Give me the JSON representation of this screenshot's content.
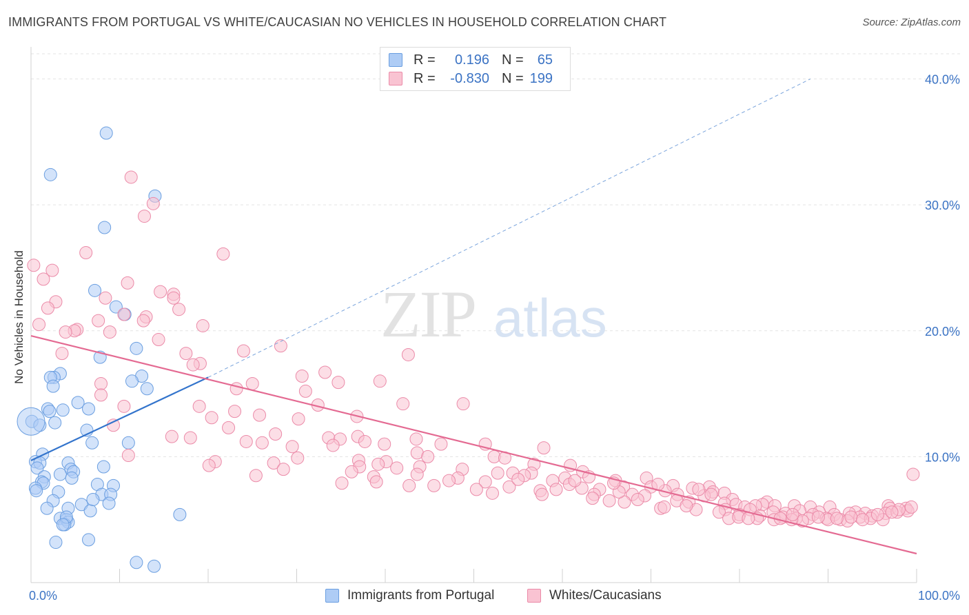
{
  "title": "IMMIGRANTS FROM PORTUGAL VS WHITE/CAUCASIAN NO VEHICLES IN HOUSEHOLD CORRELATION CHART",
  "source": "Source: ZipAtlas.com",
  "watermark": {
    "zip": "ZIP",
    "atlas": "atlas"
  },
  "legend": {
    "r_label": "R =",
    "n_label": "N =",
    "rows": [
      {
        "r": "0.196",
        "n": "65",
        "fill": "#aeccf5",
        "stroke": "#6a9ee0"
      },
      {
        "r": "-0.830",
        "n": "199",
        "fill": "#f9c3d2",
        "stroke": "#eb8aa8"
      }
    ]
  },
  "bottom_legend": [
    {
      "label": "Immigrants from Portugal",
      "fill": "#aeccf5",
      "stroke": "#6a9ee0"
    },
    {
      "label": "Whites/Caucasians",
      "fill": "#f9c3d2",
      "stroke": "#eb8aa8"
    }
  ],
  "chart_data": {
    "type": "scatter",
    "title": "IMMIGRANTS FROM PORTUGAL VS WHITE/CAUCASIAN NO VEHICLES IN HOUSEHOLD CORRELATION CHART",
    "xlabel": "",
    "ylabel": "No Vehicles in Household",
    "xlim": [
      0,
      100
    ],
    "ylim": [
      0,
      42
    ],
    "x_tick_labels": [
      "0.0%",
      "100.0%"
    ],
    "y_ticks": [
      10,
      20,
      30,
      40
    ],
    "y_tick_labels": [
      "10.0%",
      "20.0%",
      "30.0%",
      "40.0%"
    ],
    "grid": true,
    "legend_position": "top-center",
    "series": [
      {
        "name": "Immigrants from Portugal",
        "color": "#6a9ee0",
        "fill": "#aeccf5",
        "r": 0.196,
        "n": 65,
        "trend": {
          "x": [
            0,
            20
          ],
          "y": [
            9.7,
            16.3
          ],
          "dashed_extension_to": [
            88,
            40.0
          ]
        },
        "points": [
          [
            8.5,
            35.7
          ],
          [
            2.2,
            32.4
          ],
          [
            14,
            30.7
          ],
          [
            8.3,
            28.2
          ],
          [
            7.2,
            23.2
          ],
          [
            9.6,
            21.9
          ],
          [
            10.6,
            21.3
          ],
          [
            11.9,
            18.6
          ],
          [
            7.8,
            17.9
          ],
          [
            3.3,
            16.6
          ],
          [
            2.6,
            16.3
          ],
          [
            2.2,
            16.3
          ],
          [
            12.5,
            16.4
          ],
          [
            13.1,
            15.4
          ],
          [
            11.4,
            16.0
          ],
          [
            2.5,
            15.6
          ],
          [
            5.3,
            14.3
          ],
          [
            1.9,
            13.8
          ],
          [
            2.1,
            13.6
          ],
          [
            3.6,
            13.7
          ],
          [
            6.5,
            13.8
          ],
          [
            0.1,
            12.8
          ],
          [
            1.0,
            12.5
          ],
          [
            2.7,
            12.7
          ],
          [
            6.3,
            12.1
          ],
          [
            6.9,
            11.1
          ],
          [
            11,
            11.1
          ],
          [
            1.3,
            10.2
          ],
          [
            0.5,
            9.6
          ],
          [
            1.0,
            9.5
          ],
          [
            0.7,
            9.1
          ],
          [
            4.2,
            9.5
          ],
          [
            4.5,
            9.0
          ],
          [
            4.8,
            8.8
          ],
          [
            8.2,
            9.2
          ],
          [
            1.5,
            8.4
          ],
          [
            3.3,
            8.6
          ],
          [
            4.6,
            8.3
          ],
          [
            1.2,
            8.0
          ],
          [
            1.4,
            7.9
          ],
          [
            7.5,
            7.8
          ],
          [
            9.3,
            7.7
          ],
          [
            0.5,
            7.5
          ],
          [
            0.6,
            7.3
          ],
          [
            3.1,
            7.2
          ],
          [
            8.0,
            7.0
          ],
          [
            9.0,
            7.0
          ],
          [
            2.5,
            6.5
          ],
          [
            5.7,
            6.2
          ],
          [
            8.8,
            6.3
          ],
          [
            1.8,
            5.9
          ],
          [
            4.2,
            5.9
          ],
          [
            6.7,
            5.7
          ],
          [
            3.3,
            5.1
          ],
          [
            4.0,
            5.0
          ],
          [
            4.2,
            4.8
          ],
          [
            3.8,
            4.6
          ],
          [
            16.8,
            5.4
          ],
          [
            6.5,
            3.4
          ],
          [
            2.8,
            3.2
          ],
          [
            11.9,
            1.6
          ],
          [
            13.9,
            1.3
          ],
          [
            4.0,
            5.2
          ],
          [
            3.6,
            4.6
          ],
          [
            7.0,
            6.6
          ]
        ]
      },
      {
        "name": "Whites/Caucasians",
        "color": "#eb8aa8",
        "fill": "#f9c3d2",
        "r": -0.83,
        "n": 199,
        "trend": {
          "x": [
            0,
            100
          ],
          "y": [
            19.6,
            2.3
          ]
        },
        "points": [
          [
            11.3,
            32.2
          ],
          [
            13.8,
            30.1
          ],
          [
            12.8,
            29.1
          ],
          [
            6.2,
            26.2
          ],
          [
            21.7,
            26.1
          ],
          [
            0.3,
            25.2
          ],
          [
            2.4,
            24.8
          ],
          [
            1.4,
            24.1
          ],
          [
            10.9,
            23.8
          ],
          [
            14.6,
            23.1
          ],
          [
            16.1,
            22.9
          ],
          [
            8.4,
            22.6
          ],
          [
            16.1,
            22.6
          ],
          [
            2.8,
            22.3
          ],
          [
            1.9,
            21.8
          ],
          [
            16.7,
            21.7
          ],
          [
            10.5,
            21.3
          ],
          [
            13.0,
            21.1
          ],
          [
            7.6,
            20.8
          ],
          [
            12.7,
            20.8
          ],
          [
            0.9,
            20.5
          ],
          [
            19.4,
            20.4
          ],
          [
            5.2,
            20.1
          ],
          [
            4.9,
            20.0
          ],
          [
            3.9,
            19.9
          ],
          [
            8.9,
            19.9
          ],
          [
            14.4,
            19.3
          ],
          [
            28.2,
            18.8
          ],
          [
            24.0,
            18.4
          ],
          [
            17.5,
            18.2
          ],
          [
            3.5,
            18.2
          ],
          [
            42.6,
            18.1
          ],
          [
            19.1,
            17.4
          ],
          [
            18.3,
            17.3
          ],
          [
            33.2,
            16.7
          ],
          [
            30.6,
            16.4
          ],
          [
            39.4,
            16.0
          ],
          [
            34.7,
            15.9
          ],
          [
            25.0,
            15.8
          ],
          [
            7.9,
            15.8
          ],
          [
            23.2,
            15.4
          ],
          [
            31.0,
            15.2
          ],
          [
            7.9,
            14.9
          ],
          [
            42.0,
            14.2
          ],
          [
            48.8,
            14.2
          ],
          [
            32.4,
            14.1
          ],
          [
            19.0,
            14.0
          ],
          [
            10.5,
            14.0
          ],
          [
            23.0,
            13.6
          ],
          [
            25.8,
            13.3
          ],
          [
            36.8,
            13.2
          ],
          [
            20.4,
            13.1
          ],
          [
            30.2,
            13.0
          ],
          [
            9.3,
            12.5
          ],
          [
            22.3,
            12.3
          ],
          [
            27.6,
            11.8
          ],
          [
            33.6,
            11.5
          ],
          [
            36.9,
            11.6
          ],
          [
            15.9,
            11.6
          ],
          [
            18.0,
            11.5
          ],
          [
            34.9,
            11.4
          ],
          [
            43.5,
            11.4
          ],
          [
            37.7,
            11.2
          ],
          [
            24.3,
            11.2
          ],
          [
            26.1,
            11.1
          ],
          [
            39.9,
            11.0
          ],
          [
            46.3,
            11.0
          ],
          [
            51.3,
            11.0
          ],
          [
            34.1,
            10.9
          ],
          [
            29.5,
            10.8
          ],
          [
            57.9,
            10.7
          ],
          [
            43.6,
            10.3
          ],
          [
            11.0,
            10.1
          ],
          [
            44.8,
            10.0
          ],
          [
            52.3,
            10.0
          ],
          [
            53.5,
            9.9
          ],
          [
            30.1,
            9.9
          ],
          [
            37.0,
            9.7
          ],
          [
            40.1,
            9.6
          ],
          [
            20.8,
            9.6
          ],
          [
            27.4,
            9.5
          ],
          [
            20.1,
            9.3
          ],
          [
            39.2,
            9.4
          ],
          [
            56.8,
            9.4
          ],
          [
            60.9,
            9.3
          ],
          [
            37.1,
            9.2
          ],
          [
            41.3,
            9.1
          ],
          [
            43.9,
            9.2
          ],
          [
            28.5,
            9.0
          ],
          [
            48.7,
            9.0
          ],
          [
            36.2,
            8.8
          ],
          [
            62.3,
            8.8
          ],
          [
            52.7,
            8.7
          ],
          [
            54.4,
            8.7
          ],
          [
            56.5,
            8.7
          ],
          [
            43.6,
            8.6
          ],
          [
            25.4,
            8.5
          ],
          [
            38.7,
            8.4
          ],
          [
            55.7,
            8.5
          ],
          [
            48.2,
            8.3
          ],
          [
            60.3,
            8.3
          ],
          [
            69.5,
            8.3
          ],
          [
            47.2,
            8.1
          ],
          [
            66.0,
            8.1
          ],
          [
            99.6,
            8.6
          ],
          [
            35.1,
            7.9
          ],
          [
            39.0,
            8.0
          ],
          [
            51.3,
            8.0
          ],
          [
            58.9,
            8.1
          ],
          [
            42.7,
            7.7
          ],
          [
            60.8,
            7.8
          ],
          [
            70.0,
            7.6
          ],
          [
            72.5,
            7.7
          ],
          [
            76.6,
            7.6
          ],
          [
            45.5,
            7.7
          ],
          [
            54.0,
            7.6
          ],
          [
            62.2,
            7.5
          ],
          [
            66.9,
            7.6
          ],
          [
            74.7,
            7.5
          ],
          [
            50.3,
            7.4
          ],
          [
            57.5,
            7.3
          ],
          [
            64.2,
            7.4
          ],
          [
            71.6,
            7.3
          ],
          [
            77.0,
            7.2
          ],
          [
            78.3,
            7.1
          ],
          [
            52.1,
            7.1
          ],
          [
            57.7,
            7.0
          ],
          [
            63.6,
            7.0
          ],
          [
            67.9,
            7.0
          ],
          [
            73.0,
            7.0
          ],
          [
            69.3,
            6.9
          ],
          [
            63.4,
            6.7
          ],
          [
            76.0,
            6.9
          ],
          [
            72.9,
            6.5
          ],
          [
            79.2,
            6.6
          ],
          [
            65.3,
            6.5
          ],
          [
            67.0,
            6.4
          ],
          [
            74.3,
            6.4
          ],
          [
            83.1,
            6.4
          ],
          [
            82.6,
            6.2
          ],
          [
            78.3,
            6.3
          ],
          [
            79.6,
            6.2
          ],
          [
            84.0,
            6.1
          ],
          [
            86.2,
            6.1
          ],
          [
            80.6,
            6.0
          ],
          [
            81.8,
            6.1
          ],
          [
            88.0,
            6.0
          ],
          [
            90.2,
            6.0
          ],
          [
            96.8,
            6.1
          ],
          [
            97.0,
            5.9
          ],
          [
            98.8,
            5.9
          ],
          [
            71.1,
            5.9
          ],
          [
            75.1,
            5.8
          ],
          [
            78.4,
            5.8
          ],
          [
            81.2,
            5.8
          ],
          [
            86.8,
            5.7
          ],
          [
            89.0,
            5.6
          ],
          [
            93.1,
            5.6
          ],
          [
            94.2,
            5.5
          ],
          [
            96.5,
            5.5
          ],
          [
            83.8,
            5.6
          ],
          [
            85.2,
            5.5
          ],
          [
            88.3,
            5.4
          ],
          [
            90.7,
            5.4
          ],
          [
            92.4,
            5.5
          ],
          [
            95.0,
            5.3
          ],
          [
            97.8,
            5.6
          ],
          [
            99.0,
            5.7
          ],
          [
            77.7,
            5.6
          ],
          [
            80.0,
            5.4
          ],
          [
            82.3,
            5.3
          ],
          [
            84.9,
            5.2
          ],
          [
            86.4,
            5.1
          ],
          [
            87.8,
            5.1
          ],
          [
            89.8,
            5.1
          ],
          [
            91.4,
            5.0
          ],
          [
            93.6,
            5.2
          ],
          [
            94.8,
            5.1
          ],
          [
            96.2,
            5.0
          ],
          [
            87.1,
            4.9
          ],
          [
            92.2,
            4.9
          ],
          [
            83.9,
            5.0
          ],
          [
            82.0,
            5.1
          ],
          [
            78.8,
            5.1
          ],
          [
            85.9,
            5.0
          ],
          [
            90.0,
            5.0
          ],
          [
            92.6,
            5.2
          ],
          [
            95.6,
            5.4
          ],
          [
            98.0,
            5.8
          ],
          [
            71.5,
            6.0
          ],
          [
            74.0,
            6.1
          ],
          [
            79.9,
            5.2
          ],
          [
            84.6,
            5.1
          ],
          [
            88.9,
            5.2
          ],
          [
            81.0,
            5.1
          ],
          [
            93.9,
            5.0
          ],
          [
            91.0,
            5.1
          ],
          [
            97.2,
            5.6
          ],
          [
            86.0,
            5.4
          ],
          [
            99.4,
            6.0
          ],
          [
            76.8,
            7.0
          ],
          [
            68.5,
            6.6
          ],
          [
            66.4,
            7.2
          ],
          [
            61.4,
            8.1
          ],
          [
            55.0,
            8.2
          ],
          [
            59.3,
            7.4
          ],
          [
            63.0,
            8.4
          ],
          [
            65.8,
            7.9
          ],
          [
            70.8,
            7.8
          ],
          [
            75.4,
            7.4
          ]
        ]
      }
    ]
  }
}
